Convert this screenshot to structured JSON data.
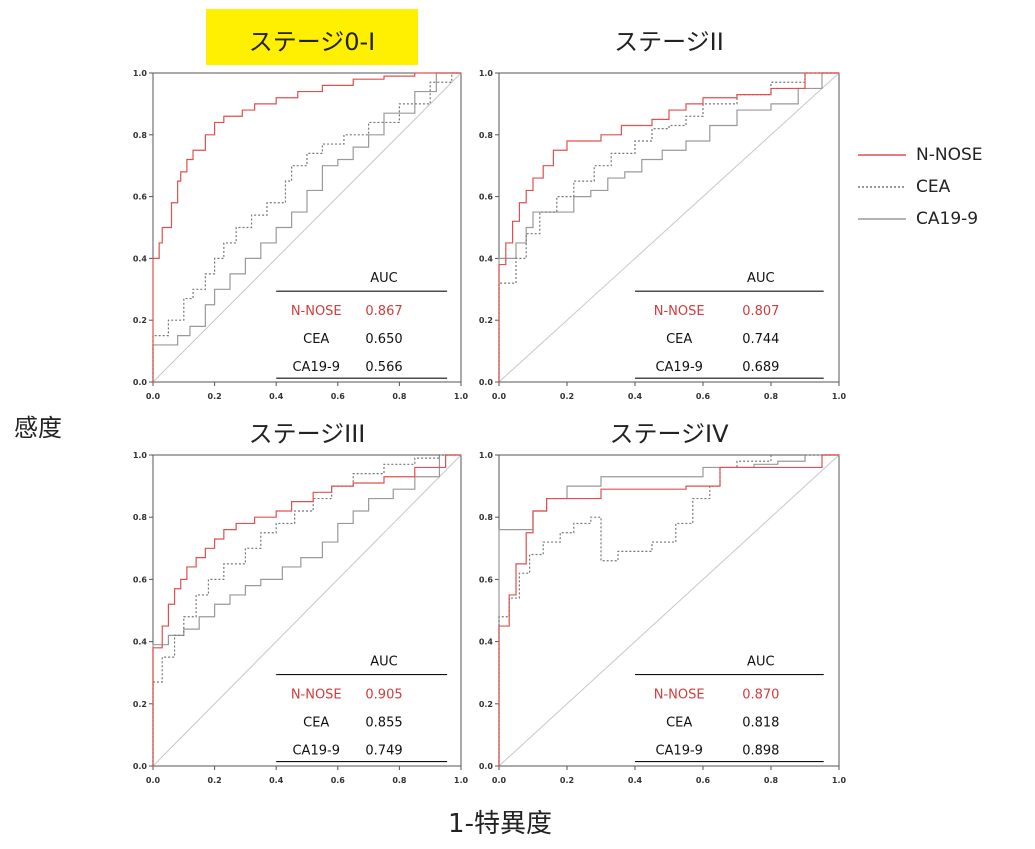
{
  "y_axis_label": "感度",
  "x_axis_label": "1-特異度",
  "legend": [
    {
      "label": "N-NOSE",
      "color": "#e05050",
      "dash": "solid"
    },
    {
      "label": "CEA",
      "color": "#777777",
      "dash": "dotted"
    },
    {
      "label": "CA19-9",
      "color": "#9a9a9a",
      "dash": "solid"
    }
  ],
  "highlight_color": "#ffef00",
  "chart_data": [
    {
      "type": "line",
      "title": "ステージ0-I",
      "title_highlighted": true,
      "xlim": [
        0,
        1
      ],
      "ylim": [
        0,
        1
      ],
      "x_ticks": [
        "0.0",
        "0.2",
        "0.4",
        "0.6",
        "0.8",
        "1.0"
      ],
      "y_ticks": [
        "0.0",
        "0.2",
        "0.4",
        "0.6",
        "0.8",
        "1.0"
      ],
      "auc_header": "AUC",
      "auc_table": [
        {
          "name": "N-NOSE",
          "value": "0.867"
        },
        {
          "name": "CEA",
          "value": "0.650"
        },
        {
          "name": "CA19-9",
          "value": "0.566"
        }
      ],
      "series": [
        {
          "name": "N-NOSE",
          "points": [
            [
              0,
              0
            ],
            [
              0,
              0.37
            ],
            [
              0.02,
              0.4
            ],
            [
              0.03,
              0.45
            ],
            [
              0.06,
              0.5
            ],
            [
              0.08,
              0.58
            ],
            [
              0.09,
              0.65
            ],
            [
              0.11,
              0.68
            ],
            [
              0.13,
              0.72
            ],
            [
              0.17,
              0.75
            ],
            [
              0.2,
              0.8
            ],
            [
              0.23,
              0.84
            ],
            [
              0.29,
              0.86
            ],
            [
              0.33,
              0.88
            ],
            [
              0.4,
              0.9
            ],
            [
              0.47,
              0.92
            ],
            [
              0.55,
              0.94
            ],
            [
              0.65,
              0.96
            ],
            [
              0.75,
              0.98
            ],
            [
              0.85,
              0.99
            ],
            [
              1.0,
              1.0
            ]
          ]
        },
        {
          "name": "CEA",
          "points": [
            [
              0,
              0
            ],
            [
              0,
              0.12
            ],
            [
              0.05,
              0.15
            ],
            [
              0.1,
              0.2
            ],
            [
              0.13,
              0.27
            ],
            [
              0.17,
              0.3
            ],
            [
              0.2,
              0.35
            ],
            [
              0.23,
              0.4
            ],
            [
              0.27,
              0.45
            ],
            [
              0.32,
              0.5
            ],
            [
              0.37,
              0.54
            ],
            [
              0.43,
              0.58
            ],
            [
              0.45,
              0.65
            ],
            [
              0.5,
              0.7
            ],
            [
              0.55,
              0.74
            ],
            [
              0.62,
              0.77
            ],
            [
              0.7,
              0.8
            ],
            [
              0.8,
              0.84
            ],
            [
              0.9,
              0.9
            ],
            [
              0.97,
              0.97
            ],
            [
              1.0,
              1.0
            ]
          ]
        },
        {
          "name": "CA19-9",
          "points": [
            [
              0,
              0
            ],
            [
              0,
              0.1
            ],
            [
              0.08,
              0.12
            ],
            [
              0.12,
              0.15
            ],
            [
              0.17,
              0.18
            ],
            [
              0.2,
              0.25
            ],
            [
              0.25,
              0.3
            ],
            [
              0.3,
              0.35
            ],
            [
              0.35,
              0.4
            ],
            [
              0.4,
              0.45
            ],
            [
              0.45,
              0.5
            ],
            [
              0.5,
              0.55
            ],
            [
              0.55,
              0.62
            ],
            [
              0.6,
              0.7
            ],
            [
              0.65,
              0.72
            ],
            [
              0.7,
              0.76
            ],
            [
              0.75,
              0.8
            ],
            [
              0.85,
              0.87
            ],
            [
              0.92,
              0.94
            ],
            [
              1.0,
              1.0
            ]
          ]
        }
      ]
    },
    {
      "type": "line",
      "title": "ステージII",
      "title_highlighted": false,
      "xlim": [
        0,
        1
      ],
      "ylim": [
        0,
        1
      ],
      "x_ticks": [
        "0.0",
        "0.2",
        "0.4",
        "0.6",
        "0.8",
        "1.0"
      ],
      "y_ticks": [
        "0.0",
        "0.2",
        "0.4",
        "0.6",
        "0.8",
        "1.0"
      ],
      "auc_header": "AUC",
      "auc_table": [
        {
          "name": "N-NOSE",
          "value": "0.807"
        },
        {
          "name": "CEA",
          "value": "0.744"
        },
        {
          "name": "CA19-9",
          "value": "0.689"
        }
      ],
      "series": [
        {
          "name": "N-NOSE",
          "points": [
            [
              0,
              0
            ],
            [
              0,
              0.31
            ],
            [
              0.02,
              0.38
            ],
            [
              0.04,
              0.45
            ],
            [
              0.06,
              0.52
            ],
            [
              0.08,
              0.58
            ],
            [
              0.1,
              0.62
            ],
            [
              0.13,
              0.66
            ],
            [
              0.16,
              0.7
            ],
            [
              0.2,
              0.75
            ],
            [
              0.24,
              0.78
            ],
            [
              0.3,
              0.78
            ],
            [
              0.36,
              0.8
            ],
            [
              0.45,
              0.83
            ],
            [
              0.5,
              0.85
            ],
            [
              0.55,
              0.88
            ],
            [
              0.6,
              0.9
            ],
            [
              0.7,
              0.92
            ],
            [
              0.8,
              0.93
            ],
            [
              0.9,
              0.95
            ],
            [
              1.0,
              1.0
            ]
          ]
        },
        {
          "name": "CEA",
          "points": [
            [
              0,
              0
            ],
            [
              0,
              0.2
            ],
            [
              0.05,
              0.32
            ],
            [
              0.08,
              0.4
            ],
            [
              0.12,
              0.48
            ],
            [
              0.17,
              0.55
            ],
            [
              0.22,
              0.6
            ],
            [
              0.28,
              0.65
            ],
            [
              0.33,
              0.7
            ],
            [
              0.4,
              0.74
            ],
            [
              0.45,
              0.78
            ],
            [
              0.5,
              0.82
            ],
            [
              0.55,
              0.83
            ],
            [
              0.6,
              0.86
            ],
            [
              0.7,
              0.9
            ],
            [
              0.8,
              0.93
            ],
            [
              0.9,
              0.97
            ],
            [
              1.0,
              1.0
            ]
          ]
        },
        {
          "name": "CA19-9",
          "points": [
            [
              0,
              0
            ],
            [
              0,
              0.38
            ],
            [
              0.05,
              0.4
            ],
            [
              0.08,
              0.45
            ],
            [
              0.1,
              0.5
            ],
            [
              0.15,
              0.55
            ],
            [
              0.22,
              0.55
            ],
            [
              0.27,
              0.6
            ],
            [
              0.32,
              0.62
            ],
            [
              0.37,
              0.66
            ],
            [
              0.42,
              0.68
            ],
            [
              0.48,
              0.72
            ],
            [
              0.55,
              0.75
            ],
            [
              0.62,
              0.78
            ],
            [
              0.7,
              0.83
            ],
            [
              0.8,
              0.88
            ],
            [
              0.88,
              0.9
            ],
            [
              0.95,
              0.95
            ],
            [
              1.0,
              1.0
            ]
          ]
        }
      ]
    },
    {
      "type": "line",
      "title": "ステージIII",
      "title_highlighted": false,
      "xlim": [
        0,
        1
      ],
      "ylim": [
        0,
        1
      ],
      "x_ticks": [
        "0.0",
        "0.2",
        "0.4",
        "0.6",
        "0.8",
        "1.0"
      ],
      "y_ticks": [
        "0.0",
        "0.2",
        "0.4",
        "0.6",
        "0.8",
        "1.0"
      ],
      "auc_header": "AUC",
      "auc_table": [
        {
          "name": "N-NOSE",
          "value": "0.905"
        },
        {
          "name": "CEA",
          "value": "0.855"
        },
        {
          "name": "CA19-9",
          "value": "0.749"
        }
      ],
      "series": [
        {
          "name": "N-NOSE",
          "points": [
            [
              0,
              0
            ],
            [
              0,
              0.32
            ],
            [
              0.03,
              0.38
            ],
            [
              0.05,
              0.45
            ],
            [
              0.07,
              0.52
            ],
            [
              0.09,
              0.57
            ],
            [
              0.11,
              0.6
            ],
            [
              0.14,
              0.64
            ],
            [
              0.17,
              0.67
            ],
            [
              0.2,
              0.7
            ],
            [
              0.23,
              0.73
            ],
            [
              0.27,
              0.76
            ],
            [
              0.33,
              0.78
            ],
            [
              0.4,
              0.8
            ],
            [
              0.45,
              0.82
            ],
            [
              0.52,
              0.85
            ],
            [
              0.58,
              0.88
            ],
            [
              0.65,
              0.9
            ],
            [
              0.75,
              0.91
            ],
            [
              0.85,
              0.93
            ],
            [
              0.95,
              0.96
            ],
            [
              1.0,
              1.0
            ]
          ]
        },
        {
          "name": "CEA",
          "points": [
            [
              0,
              0
            ],
            [
              0,
              0.22
            ],
            [
              0.03,
              0.27
            ],
            [
              0.07,
              0.35
            ],
            [
              0.1,
              0.42
            ],
            [
              0.14,
              0.48
            ],
            [
              0.18,
              0.55
            ],
            [
              0.23,
              0.6
            ],
            [
              0.3,
              0.65
            ],
            [
              0.35,
              0.7
            ],
            [
              0.4,
              0.75
            ],
            [
              0.46,
              0.78
            ],
            [
              0.52,
              0.82
            ],
            [
              0.58,
              0.86
            ],
            [
              0.65,
              0.9
            ],
            [
              0.75,
              0.94
            ],
            [
              0.85,
              0.97
            ],
            [
              0.93,
              0.99
            ],
            [
              1.0,
              1.0
            ]
          ]
        },
        {
          "name": "CA19-9",
          "points": [
            [
              0,
              0
            ],
            [
              0,
              0.35
            ],
            [
              0.05,
              0.39
            ],
            [
              0.1,
              0.42
            ],
            [
              0.15,
              0.44
            ],
            [
              0.2,
              0.48
            ],
            [
              0.25,
              0.52
            ],
            [
              0.3,
              0.55
            ],
            [
              0.35,
              0.58
            ],
            [
              0.42,
              0.6
            ],
            [
              0.48,
              0.64
            ],
            [
              0.55,
              0.67
            ],
            [
              0.6,
              0.72
            ],
            [
              0.65,
              0.78
            ],
            [
              0.7,
              0.82
            ],
            [
              0.78,
              0.86
            ],
            [
              0.85,
              0.89
            ],
            [
              0.93,
              0.93
            ],
            [
              1.0,
              1.0
            ]
          ]
        }
      ]
    },
    {
      "type": "line",
      "title": "ステージIV",
      "title_highlighted": false,
      "xlim": [
        0,
        1
      ],
      "ylim": [
        0,
        1
      ],
      "x_ticks": [
        "0.0",
        "0.2",
        "0.4",
        "0.6",
        "0.8",
        "1.0"
      ],
      "y_ticks": [
        "0.0",
        "0.2",
        "0.4",
        "0.6",
        "0.8",
        "1.0"
      ],
      "auc_header": "AUC",
      "auc_table": [
        {
          "name": "N-NOSE",
          "value": "0.870"
        },
        {
          "name": "CEA",
          "value": "0.818"
        },
        {
          "name": "CA19-9",
          "value": "0.898"
        }
      ],
      "series": [
        {
          "name": "N-NOSE",
          "points": [
            [
              0,
              0
            ],
            [
              0,
              0.38
            ],
            [
              0.03,
              0.45
            ],
            [
              0.05,
              0.55
            ],
            [
              0.08,
              0.65
            ],
            [
              0.1,
              0.75
            ],
            [
              0.14,
              0.82
            ],
            [
              0.17,
              0.86
            ],
            [
              0.25,
              0.86
            ],
            [
              0.3,
              0.86
            ],
            [
              0.36,
              0.89
            ],
            [
              0.45,
              0.89
            ],
            [
              0.55,
              0.89
            ],
            [
              0.65,
              0.9
            ],
            [
              0.75,
              0.96
            ],
            [
              0.85,
              0.96
            ],
            [
              0.95,
              0.96
            ],
            [
              1.0,
              1.0
            ]
          ]
        },
        {
          "name": "CEA",
          "points": [
            [
              0,
              0
            ],
            [
              0,
              0.42
            ],
            [
              0.03,
              0.48
            ],
            [
              0.06,
              0.54
            ],
            [
              0.09,
              0.62
            ],
            [
              0.13,
              0.68
            ],
            [
              0.18,
              0.72
            ],
            [
              0.22,
              0.75
            ],
            [
              0.27,
              0.78
            ],
            [
              0.3,
              0.8
            ],
            [
              0.35,
              0.66
            ],
            [
              0.45,
              0.69
            ],
            [
              0.52,
              0.72
            ],
            [
              0.57,
              0.78
            ],
            [
              0.62,
              0.86
            ],
            [
              0.65,
              0.9
            ],
            [
              0.7,
              0.96
            ],
            [
              0.8,
              0.98
            ],
            [
              0.9,
              1.0
            ],
            [
              1.0,
              1.0
            ]
          ]
        },
        {
          "name": "CA19-9",
          "points": [
            [
              0,
              0
            ],
            [
              0,
              0.72
            ],
            [
              0.03,
              0.76
            ],
            [
              0.1,
              0.76
            ],
            [
              0.14,
              0.82
            ],
            [
              0.2,
              0.86
            ],
            [
              0.3,
              0.9
            ],
            [
              0.4,
              0.93
            ],
            [
              0.5,
              0.93
            ],
            [
              0.6,
              0.93
            ],
            [
              0.68,
              0.96
            ],
            [
              0.75,
              0.96
            ],
            [
              0.82,
              0.97
            ],
            [
              0.9,
              0.98
            ],
            [
              1.0,
              1.0
            ]
          ]
        }
      ]
    }
  ]
}
